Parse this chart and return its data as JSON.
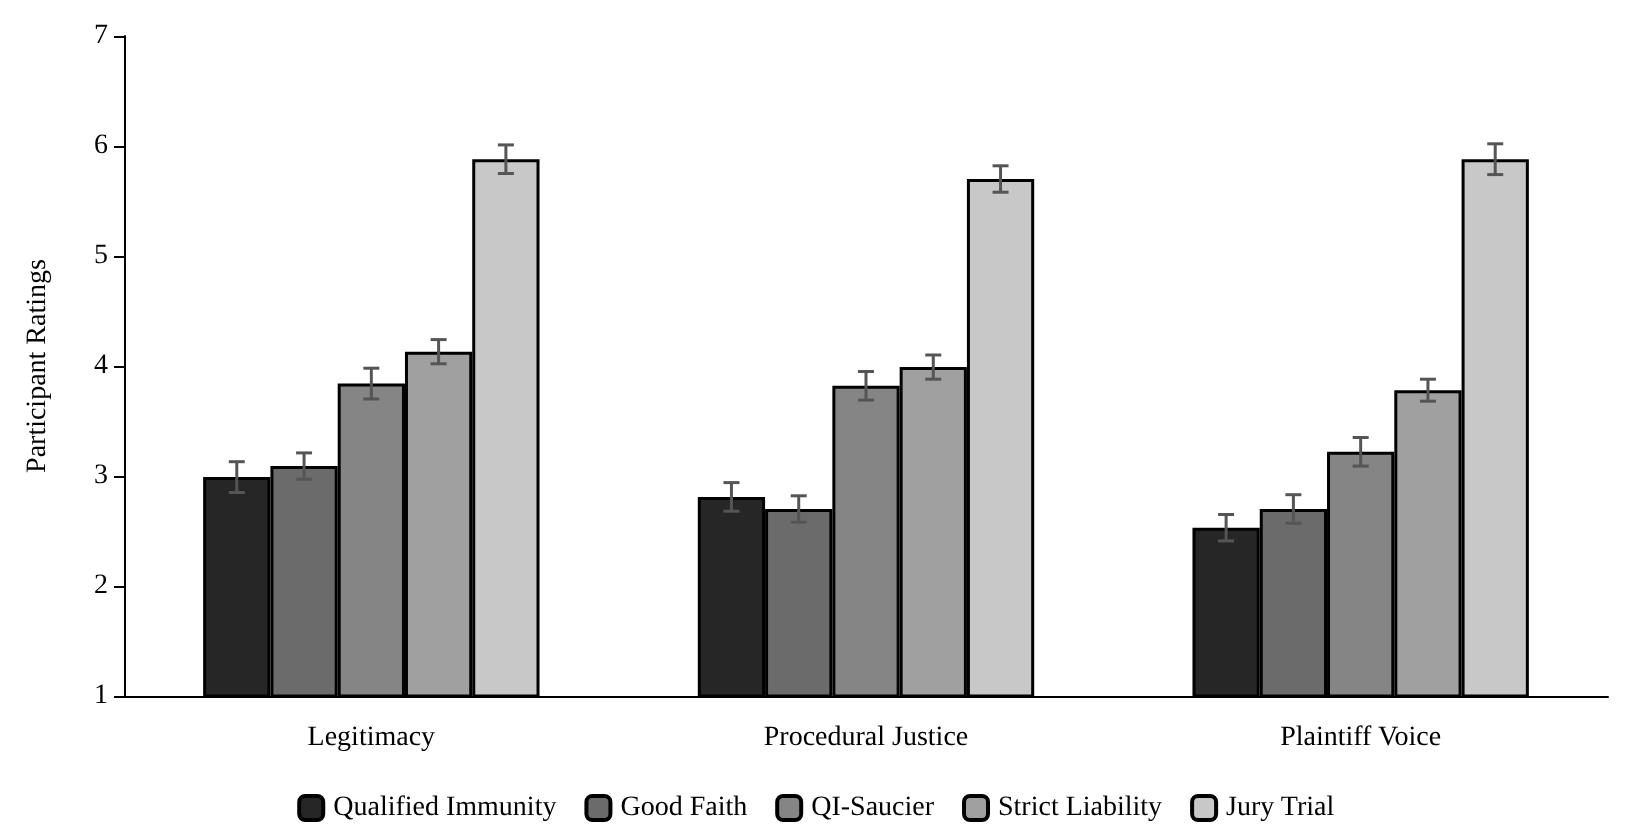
{
  "chart_data": {
    "type": "bar",
    "ylabel": "Participant Ratings",
    "categories": [
      "Legitimacy",
      "Procedural Justice",
      "Plaintiff Voice"
    ],
    "series": [
      {
        "name": "Qualified Immunity",
        "color": "#262626",
        "values": [
          2.99,
          2.81,
          2.53
        ],
        "errors": [
          0.14,
          0.13,
          0.12
        ]
      },
      {
        "name": "Good Faith",
        "color": "#6b6b6b",
        "values": [
          3.09,
          2.7,
          2.7
        ],
        "errors": [
          0.12,
          0.12,
          0.13
        ]
      },
      {
        "name": "QI-Saucier",
        "color": "#858585",
        "values": [
          3.84,
          3.82,
          3.22
        ],
        "errors": [
          0.14,
          0.13,
          0.13
        ]
      },
      {
        "name": "Strict Liability",
        "color": "#a0a0a0",
        "values": [
          4.13,
          3.99,
          3.78
        ],
        "errors": [
          0.11,
          0.11,
          0.1
        ]
      },
      {
        "name": "Jury Trial",
        "color": "#c8c8c8",
        "values": [
          5.88,
          5.7,
          5.88
        ],
        "errors": [
          0.13,
          0.12,
          0.14
        ]
      }
    ],
    "ylim": [
      1,
      7
    ],
    "yticks": [
      1,
      2,
      3,
      4,
      5,
      6,
      7
    ],
    "grid": false,
    "legend": "bottom"
  }
}
